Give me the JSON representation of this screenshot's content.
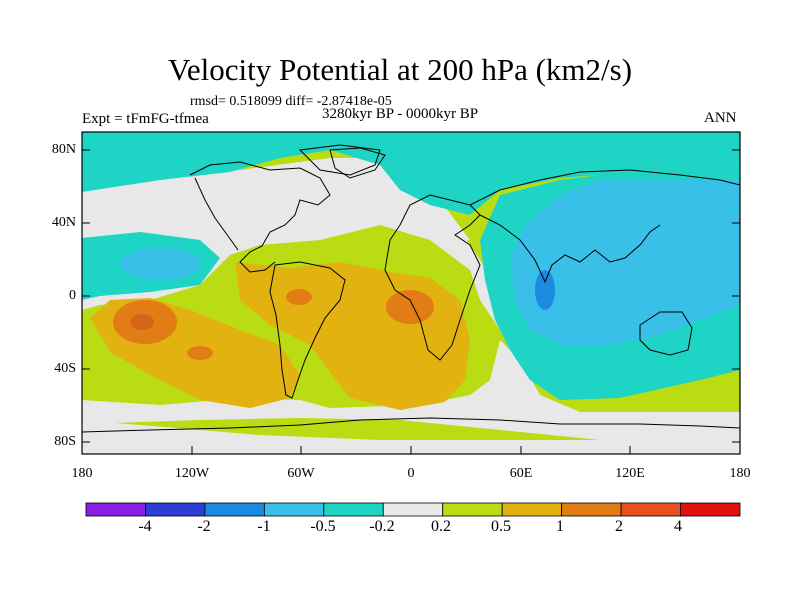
{
  "title": "Velocity Potential at 200 hPa (km2/s)",
  "stats_line": "rmsd= 0.518099 diff= -2.87418e-05",
  "experiment": "Expt = tFmFG-tfmea",
  "time_period": "3280kyr BP - 0000kyr BP",
  "season": "ANN",
  "lat_labels": [
    "80N",
    "40N",
    "0",
    "40S",
    "80S"
  ],
  "lon_labels": [
    "180",
    "120W",
    "60W",
    "0",
    "60E",
    "120E",
    "180"
  ],
  "colorbar": {
    "labels": [
      "-4",
      "-2",
      "-1",
      "-0.5",
      "-0.2",
      "0.2",
      "0.5",
      "1",
      "2",
      "4"
    ],
    "colors": [
      "#8c1ee6",
      "#2b3fd6",
      "#1c8ae0",
      "#38c0e8",
      "#1ed4c4",
      "#e8e8e8",
      "#b9dc12",
      "#e2b210",
      "#e27c14",
      "#e85020",
      "#e01010"
    ]
  },
  "field_colors": {
    "neutral": "#e8e8e8",
    "teal": "#1ed4c4",
    "light_blue": "#38c0e8",
    "blue": "#1c8ae0",
    "yellow_green": "#b9dc12",
    "gold": "#e2b210",
    "orange": "#e27c14",
    "red_orange": "#e85020"
  }
}
